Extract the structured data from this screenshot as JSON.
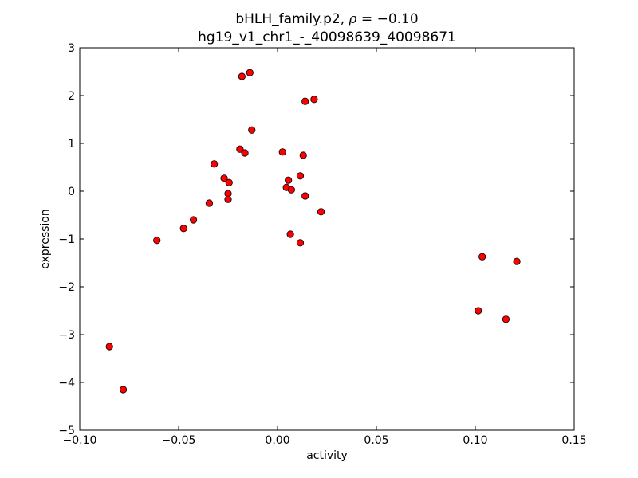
{
  "chart_data": {
    "type": "scatter",
    "title": {
      "prefix": "bHLH_family.p2, ",
      "rho_symbol": "ρ",
      "rho_eq": " = ",
      "rho_value": "−0.10",
      "line2": "hg19_v1_chr1_-_40098639_40098671"
    },
    "xlabel": "activity",
    "ylabel": "expression",
    "xlim": [
      -0.1,
      0.15
    ],
    "ylim": [
      -5,
      3
    ],
    "xticks": [
      {
        "value": -0.1,
        "label": "−0.10"
      },
      {
        "value": -0.05,
        "label": "−0.05"
      },
      {
        "value": 0.0,
        "label": "0.00"
      },
      {
        "value": 0.05,
        "label": "0.05"
      },
      {
        "value": 0.1,
        "label": "0.10"
      },
      {
        "value": 0.15,
        "label": "0.15"
      }
    ],
    "yticks": [
      {
        "value": 3,
        "label": "3"
      },
      {
        "value": 2,
        "label": "2"
      },
      {
        "value": 1,
        "label": "1"
      },
      {
        "value": 0,
        "label": "0"
      },
      {
        "value": -1,
        "label": "−1"
      },
      {
        "value": -2,
        "label": "−2"
      },
      {
        "value": -3,
        "label": "−3"
      },
      {
        "value": -4,
        "label": "−4"
      },
      {
        "value": -5,
        "label": "−5"
      }
    ],
    "grid": false,
    "marker_color": "#ff0000",
    "marker_edge_color": "#000000",
    "points": [
      {
        "x": -0.018,
        "y": 2.4
      },
      {
        "x": -0.014,
        "y": 2.48
      },
      {
        "x": 0.014,
        "y": 1.88
      },
      {
        "x": 0.0185,
        "y": 1.92
      },
      {
        "x": -0.013,
        "y": 1.28
      },
      {
        "x": -0.019,
        "y": 0.88
      },
      {
        "x": -0.0165,
        "y": 0.8
      },
      {
        "x": 0.0025,
        "y": 0.82
      },
      {
        "x": 0.013,
        "y": 0.75
      },
      {
        "x": -0.032,
        "y": 0.57
      },
      {
        "x": -0.027,
        "y": 0.27
      },
      {
        "x": -0.0245,
        "y": 0.18
      },
      {
        "x": -0.025,
        "y": -0.05
      },
      {
        "x": -0.025,
        "y": -0.17
      },
      {
        "x": 0.0115,
        "y": 0.32
      },
      {
        "x": 0.0055,
        "y": 0.23
      },
      {
        "x": 0.0045,
        "y": 0.08
      },
      {
        "x": 0.007,
        "y": 0.03
      },
      {
        "x": 0.014,
        "y": -0.1
      },
      {
        "x": -0.0345,
        "y": -0.25
      },
      {
        "x": 0.022,
        "y": -0.43
      },
      {
        "x": -0.0425,
        "y": -0.6
      },
      {
        "x": -0.0475,
        "y": -0.78
      },
      {
        "x": 0.0065,
        "y": -0.9
      },
      {
        "x": -0.061,
        "y": -1.03
      },
      {
        "x": 0.0115,
        "y": -1.08
      },
      {
        "x": 0.1035,
        "y": -1.37
      },
      {
        "x": 0.121,
        "y": -1.47
      },
      {
        "x": 0.1015,
        "y": -2.5
      },
      {
        "x": 0.1155,
        "y": -2.68
      },
      {
        "x": -0.085,
        "y": -3.25
      },
      {
        "x": -0.078,
        "y": -4.15
      }
    ]
  }
}
